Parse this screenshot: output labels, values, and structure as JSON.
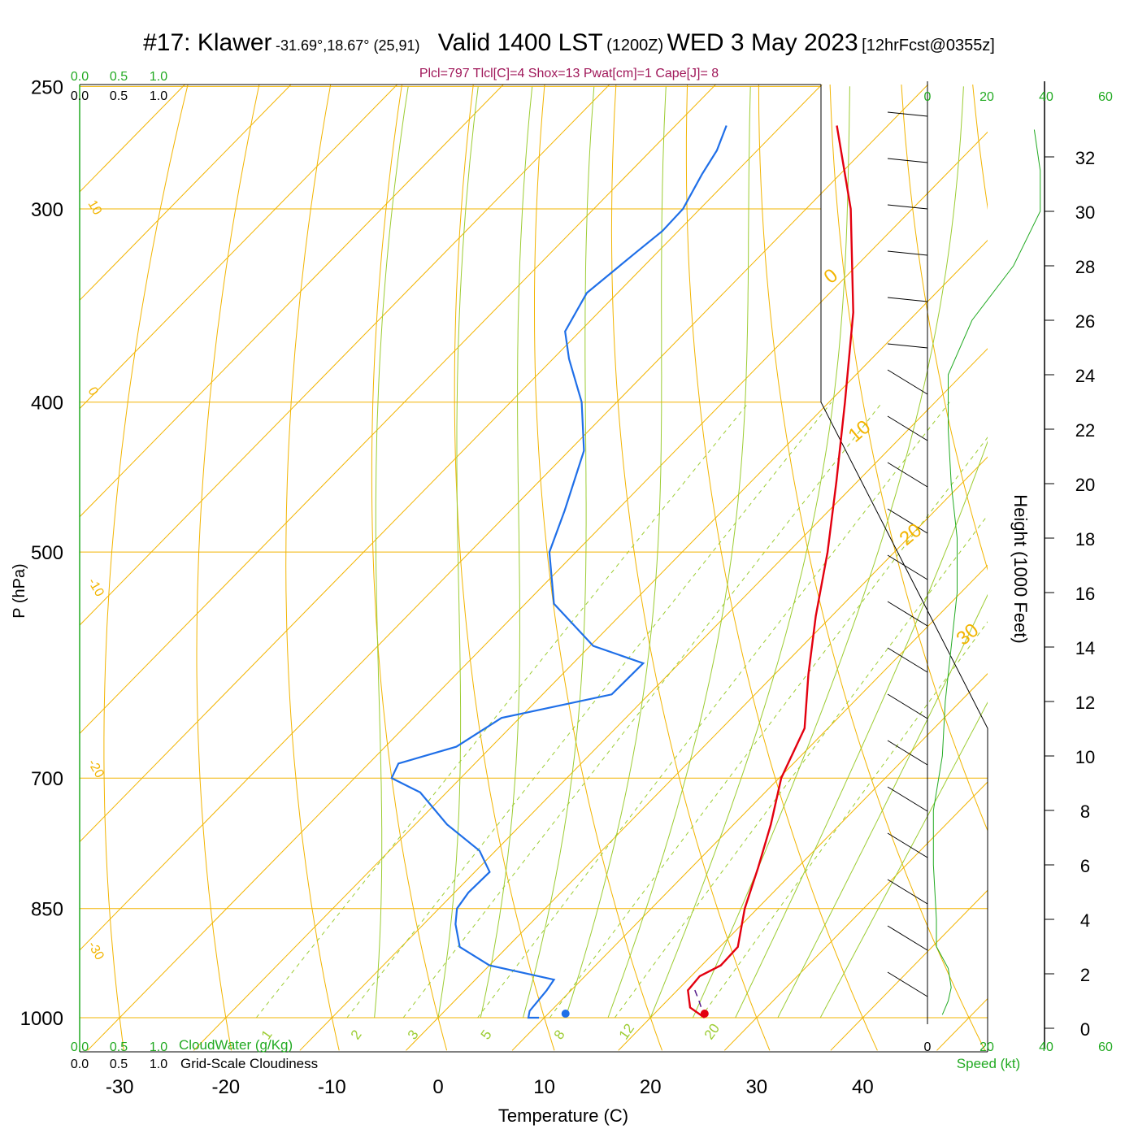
{
  "header": {
    "station": "#17: Klawer",
    "coords": "-31.69°,18.67° (25,91)",
    "valid": "Valid 1400 LST",
    "utc": "(1200Z)",
    "date": "WED 3 May 2023",
    "forecast": "[12hrFcst@0355z]"
  },
  "indices_text": "Plcl=797 Tlcl[C]=4 Shox=13 Pwat[cm]=1 Cape[J]= 8",
  "colors": {
    "temperature": "#e3000f",
    "dewpoint": "#1f6fe8",
    "isotherm": "#f2b400",
    "dry_adiabat": "#f2b400",
    "moist_adiabat": "#9ccc32",
    "mixing_ratio": "#9ccc32",
    "green_text": "#22aa22",
    "indices": "#a0185a",
    "parcel": "#551a8b"
  },
  "chart_data": {
    "type": "skew-t",
    "xlabel": "Temperature (C)",
    "ylabel": "P (hPa)",
    "right_ylabel": "Height (1000 Feet)",
    "x_ticks": [
      -30,
      -20,
      -10,
      0,
      10,
      20,
      30,
      40
    ],
    "p_ticks": [
      250,
      300,
      400,
      500,
      700,
      850,
      1000
    ],
    "height_ticks": [
      0,
      2,
      4,
      6,
      8,
      10,
      12,
      14,
      16,
      18,
      20,
      22,
      24,
      26,
      28,
      30,
      32
    ],
    "isotherm_labels": [
      {
        "text": "10",
        "deg": 10
      },
      {
        "text": "0",
        "deg": 0
      },
      {
        "text": "-10",
        "deg": -10
      },
      {
        "text": "-20",
        "deg": -20
      },
      {
        "text": "-30",
        "deg": -30
      }
    ],
    "right_temp_labels": [
      {
        "text": "0",
        "deg": 0
      },
      {
        "text": "10",
        "deg": 10
      },
      {
        "text": "20",
        "deg": 20
      },
      {
        "text": "30",
        "deg": 30
      }
    ],
    "mixing_ratio_labels": [
      "1",
      "2",
      "3",
      "5",
      "8",
      "12",
      "20"
    ],
    "cloud_axes": [
      {
        "ticks": [
          "0.0",
          "0.5",
          "1.0"
        ],
        "color": "green"
      },
      {
        "ticks": [
          "0.0",
          "0.5",
          "1.0"
        ],
        "color": "black"
      }
    ],
    "cloudwater_label": "CloudWater (g/Kg)",
    "cloudiness_label": "Grid-Scale Cloudiness",
    "speed_ticks": [
      "0",
      "20",
      "40",
      "60"
    ],
    "speed_label": "Speed (kt)",
    "temperature_profile": [
      {
        "p": 1000,
        "t": 25.1
      },
      {
        "p": 985,
        "t": 22.8
      },
      {
        "p": 960,
        "t": 21.0
      },
      {
        "p": 940,
        "t": 20.8
      },
      {
        "p": 925,
        "t": 21.8
      },
      {
        "p": 900,
        "t": 21.7
      },
      {
        "p": 850,
        "t": 18.8
      },
      {
        "p": 800,
        "t": 16.3
      },
      {
        "p": 750,
        "t": 13.5
      },
      {
        "p": 700,
        "t": 10.2
      },
      {
        "p": 650,
        "t": 7.8
      },
      {
        "p": 600,
        "t": 3.2
      },
      {
        "p": 550,
        "t": -1.5
      },
      {
        "p": 500,
        "t": -6.3
      },
      {
        "p": 450,
        "t": -12.0
      },
      {
        "p": 400,
        "t": -18.5
      },
      {
        "p": 350,
        "t": -26.0
      },
      {
        "p": 300,
        "t": -35.8
      },
      {
        "p": 280,
        "t": -40.8
      },
      {
        "p": 265,
        "t": -44.8
      }
    ],
    "dewpoint_profile": [
      {
        "p": 1000,
        "t": 9.5
      },
      {
        "p": 1000,
        "t": 8.5
      },
      {
        "p": 990,
        "t": 8.0
      },
      {
        "p": 960,
        "t": 7.7
      },
      {
        "p": 945,
        "t": 7.4
      },
      {
        "p": 925,
        "t": 0.0
      },
      {
        "p": 900,
        "t": -4.5
      },
      {
        "p": 870,
        "t": -7.0
      },
      {
        "p": 850,
        "t": -8.3
      },
      {
        "p": 830,
        "t": -8.7
      },
      {
        "p": 805,
        "t": -8.6
      },
      {
        "p": 780,
        "t": -11.5
      },
      {
        "p": 750,
        "t": -17.0
      },
      {
        "p": 715,
        "t": -22.5
      },
      {
        "p": 700,
        "t": -26.5
      },
      {
        "p": 685,
        "t": -27.2
      },
      {
        "p": 668,
        "t": -23.3
      },
      {
        "p": 640,
        "t": -21.7
      },
      {
        "p": 618,
        "t": -13.5
      },
      {
        "p": 590,
        "t": -13.4
      },
      {
        "p": 575,
        "t": -19.7
      },
      {
        "p": 540,
        "t": -27.3
      },
      {
        "p": 500,
        "t": -32.5
      },
      {
        "p": 470,
        "t": -34.9
      },
      {
        "p": 430,
        "t": -38.6
      },
      {
        "p": 400,
        "t": -43.3
      },
      {
        "p": 375,
        "t": -48.5
      },
      {
        "p": 360,
        "t": -51.4
      },
      {
        "p": 340,
        "t": -52.9
      },
      {
        "p": 320,
        "t": -52.0
      },
      {
        "p": 310,
        "t": -51.5
      },
      {
        "p": 300,
        "t": -51.6
      },
      {
        "p": 285,
        "t": -53.0
      },
      {
        "p": 275,
        "t": -53.8
      },
      {
        "p": 265,
        "t": -55.2
      }
    ],
    "parcel_path": [
      {
        "p": 1000,
        "t": 25.1
      },
      {
        "p": 975,
        "t": 23.0
      },
      {
        "p": 955,
        "t": 21.2
      }
    ],
    "surface_points": {
      "temperature": 25.1,
      "dewpoint": 12.0
    },
    "wind_speed_profile": [
      {
        "h": 0.5,
        "kt": 5
      },
      {
        "h": 1,
        "kt": 7
      },
      {
        "h": 1.5,
        "kt": 8
      },
      {
        "h": 2.2,
        "kt": 7
      },
      {
        "h": 3,
        "kt": 3
      },
      {
        "h": 4,
        "kt": 3
      },
      {
        "h": 6,
        "kt": 2
      },
      {
        "h": 8,
        "kt": 2
      },
      {
        "h": 10,
        "kt": 5
      },
      {
        "h": 12,
        "kt": 6
      },
      {
        "h": 14,
        "kt": 8
      },
      {
        "h": 16,
        "kt": 10
      },
      {
        "h": 18,
        "kt": 10
      },
      {
        "h": 20,
        "kt": 8
      },
      {
        "h": 22,
        "kt": 7
      },
      {
        "h": 24,
        "kt": 7
      },
      {
        "h": 26,
        "kt": 15
      },
      {
        "h": 28,
        "kt": 29
      },
      {
        "h": 30,
        "kt": 38
      },
      {
        "h": 31.5,
        "kt": 38
      },
      {
        "h": 33,
        "kt": 36
      }
    ]
  }
}
